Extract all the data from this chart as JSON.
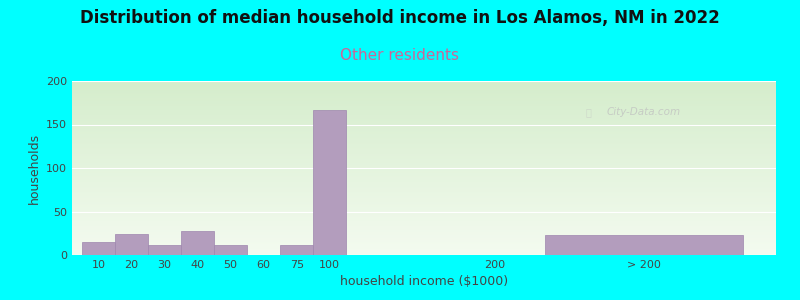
{
  "title": "Distribution of median household income in Los Alamos, NM in 2022",
  "subtitle": "Other residents",
  "xlabel": "household income ($1000)",
  "ylabel": "households",
  "background_color": "#00FFFF",
  "bar_color": "#b39dbd",
  "bar_edge_color": "#9e86ae",
  "values": [
    15,
    24,
    12,
    28,
    12,
    0,
    12,
    167,
    0,
    23
  ],
  "positions": [
    0,
    1,
    2,
    3,
    4,
    5,
    6,
    7,
    12,
    14
  ],
  "bar_widths": [
    1,
    1,
    1,
    1,
    1,
    1,
    1,
    1,
    1,
    6
  ],
  "ylim": [
    0,
    200
  ],
  "yticks": [
    0,
    50,
    100,
    150,
    200
  ],
  "xtick_labels": [
    "10",
    "20",
    "30",
    "40",
    "50",
    "60",
    "75",
    "100",
    "200",
    "> 200"
  ],
  "xtick_positions": [
    0.5,
    1.5,
    2.5,
    3.5,
    4.5,
    5.5,
    6.5,
    7.5,
    12.5,
    17.0
  ],
  "xlim": [
    -0.3,
    21
  ],
  "watermark": "City-Data.com",
  "title_fontsize": 12,
  "subtitle_fontsize": 11,
  "axis_label_fontsize": 9,
  "subtitle_color": "#cc6699",
  "title_color": "#111111",
  "tick_color": "#444444",
  "ylabel_color": "#444444",
  "xlabel_color": "#444444",
  "grid_color": "#ffffff",
  "plot_bg_color_top": "#e8f5e0",
  "plot_bg_color_bottom": "#f5fcf5"
}
